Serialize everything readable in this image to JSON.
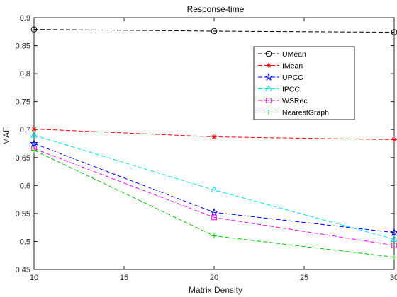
{
  "chart_data": {
    "type": "line",
    "title": "Response-time",
    "xlabel": "Matrix Density",
    "ylabel": "MAE",
    "xlim": [
      10,
      30
    ],
    "ylim": [
      0.45,
      0.9
    ],
    "xticks": [
      "10",
      "15",
      "20",
      "25",
      "30"
    ],
    "yticks": [
      "0.45",
      "0.5",
      "0.55",
      "0.6",
      "0.65",
      "0.7",
      "0.75",
      "0.8",
      "0.85",
      "0.9"
    ],
    "x": [
      10,
      20,
      30
    ],
    "grid": false,
    "legend_position": "top-right",
    "series": [
      {
        "name": "UMean",
        "values": [
          0.879,
          0.876,
          0.874
        ],
        "color": "#000000",
        "marker": "circle"
      },
      {
        "name": "IMean",
        "values": [
          0.701,
          0.687,
          0.682
        ],
        "color": "#ff0000",
        "marker": "asterisk"
      },
      {
        "name": "UPCC",
        "values": [
          0.675,
          0.552,
          0.516
        ],
        "color": "#0000ff",
        "marker": "star"
      },
      {
        "name": "IPCC",
        "values": [
          0.69,
          0.592,
          0.504
        ],
        "color": "#00e5ee",
        "marker": "triangle"
      },
      {
        "name": "WSRec",
        "values": [
          0.666,
          0.543,
          0.493
        ],
        "color": "#ff00ff",
        "marker": "square"
      },
      {
        "name": "NearestGraph",
        "values": [
          0.663,
          0.51,
          0.472
        ],
        "color": "#00cc00",
        "marker": "plus"
      }
    ]
  }
}
